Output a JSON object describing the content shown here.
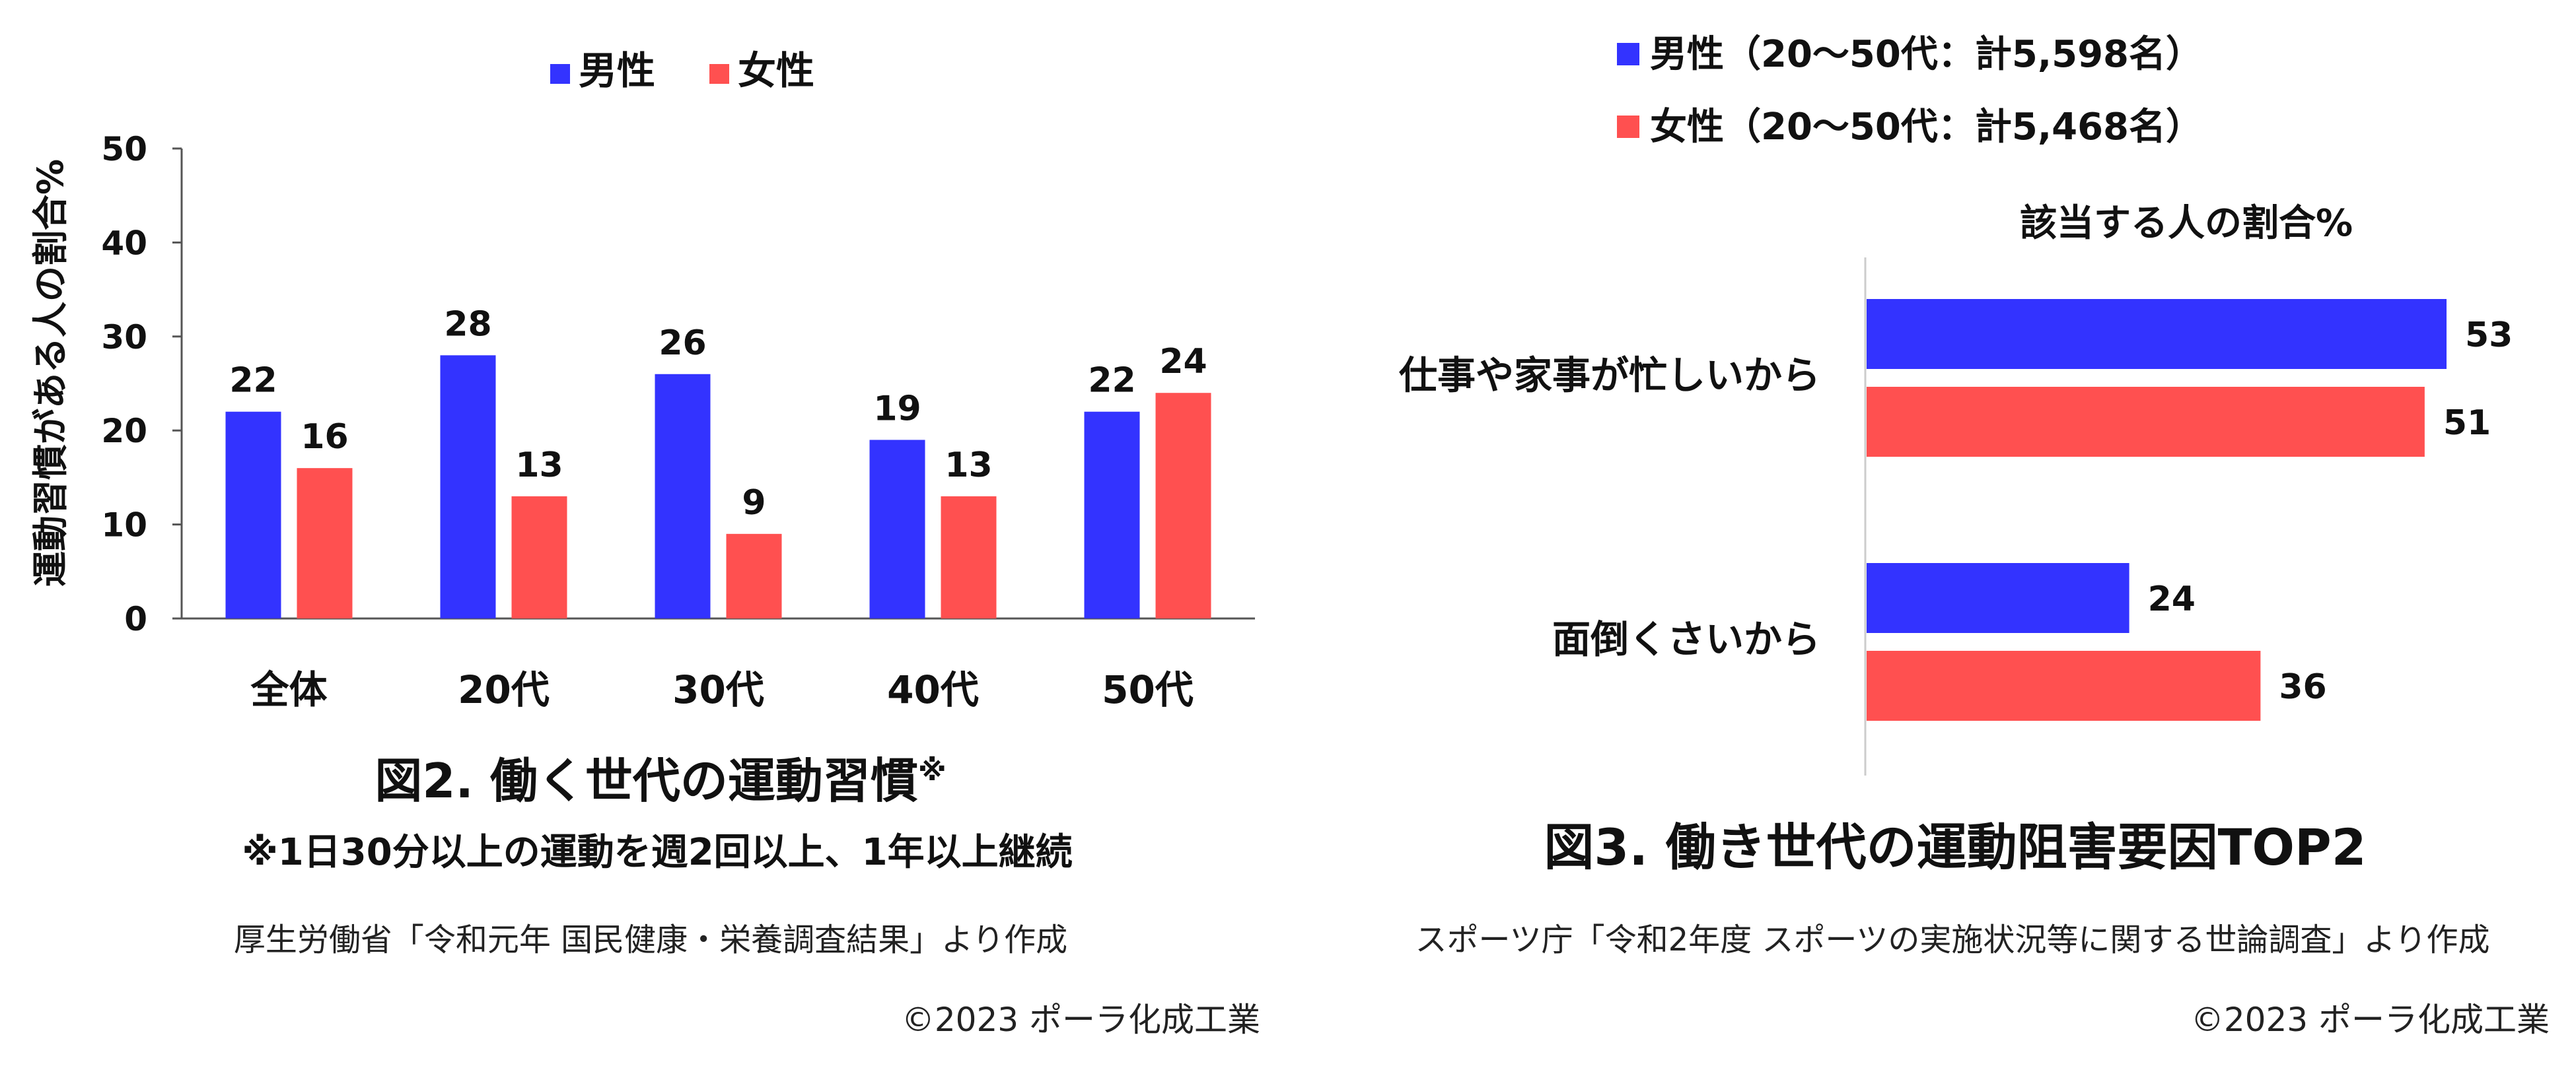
{
  "colors": {
    "male": "#3333ff",
    "female": "#ff5050",
    "axis": "#555555",
    "text": "#111111"
  },
  "chart_data": [
    {
      "type": "bar",
      "title": "図2. 働く世代の運動習慣",
      "title_mark": "※",
      "note": "※1日30分以上の運動を週2回以上、1年以上継続",
      "source": "厚生労働省「令和元年 国民健康・栄養調査結果」より作成",
      "copyright": "©2023 ポーラ化成工業",
      "ylabel": "運動習慣がある人の割合%",
      "xlabel": "",
      "ylim": [
        0,
        50
      ],
      "yticks": [
        "0",
        "10",
        "20",
        "30",
        "40",
        "50"
      ],
      "categories": [
        "全体",
        "20代",
        "30代",
        "40代",
        "50代"
      ],
      "legend": [
        "男性",
        "女性"
      ],
      "legend_position": "top",
      "series": [
        {
          "name": "男性",
          "color": "#3333ff",
          "values": [
            22,
            28,
            26,
            19,
            22
          ]
        },
        {
          "name": "女性",
          "color": "#ff5050",
          "values": [
            16,
            13,
            9,
            13,
            24
          ]
        }
      ],
      "grid": false
    },
    {
      "type": "bar",
      "orientation": "horizontal",
      "title": "図3. 働き世代の運動阻害要因TOP2",
      "subtitle": "該当する人の割合%",
      "source": "スポーツ庁「令和2年度 スポーツの実施状況等に関する世論調査」より作成",
      "copyright": "©2023 ポーラ化成工業",
      "xlim": [
        0,
        60
      ],
      "categories": [
        "仕事や家事が忙しいから",
        "面倒くさいから"
      ],
      "legend": [
        "男性（20～50代：計5,598名）",
        "女性（20～50代：計5,468名）"
      ],
      "legend_position": "top-left",
      "series": [
        {
          "name": "男性（20～50代：計5,598名）",
          "color": "#3333ff",
          "values": [
            53,
            24
          ]
        },
        {
          "name": "女性（20～50代：計5,468名）",
          "color": "#ff5050",
          "values": [
            51,
            36
          ]
        }
      ],
      "grid": false
    }
  ]
}
